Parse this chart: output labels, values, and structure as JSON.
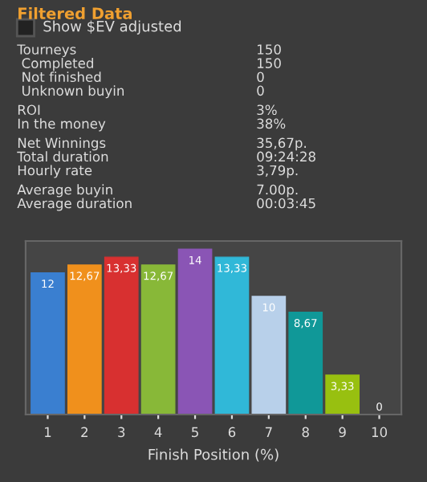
{
  "chart_data": {
    "type": "bar",
    "title": "Filtered Data",
    "xlabel": "Finish Position (%)",
    "categories": [
      "1",
      "2",
      "3",
      "4",
      "5",
      "6",
      "7",
      "8",
      "9",
      "10"
    ],
    "values": [
      12,
      12.67,
      13.33,
      12.67,
      14,
      13.33,
      10,
      8.67,
      3.33,
      0
    ],
    "value_labels": [
      "12",
      "12,67",
      "13,33",
      "12,67",
      "14",
      "13,33",
      "10",
      "8,67",
      "3,33",
      "0"
    ],
    "colors": [
      "#3a7fd0",
      "#f0901c",
      "#d83030",
      "#88b838",
      "#8a55b5",
      "#30b8d8",
      "#b8d0ea",
      "#109898",
      "#98c010",
      "#609020"
    ],
    "annotations": [
      "Show $EV adjusted",
      "Tourneys",
      "150",
      " Completed",
      "150",
      " Not finished",
      "0",
      " Unknown buyin",
      "0",
      "ROI",
      "3%",
      "In the money",
      "38%",
      "Net Winnings",
      "35,67р.",
      "Total duration",
      "09:24:28",
      "Hourly rate",
      "3,79р.",
      "Average buyin",
      "7.00р.",
      "Average duration",
      "00:03:45"
    ]
  }
}
